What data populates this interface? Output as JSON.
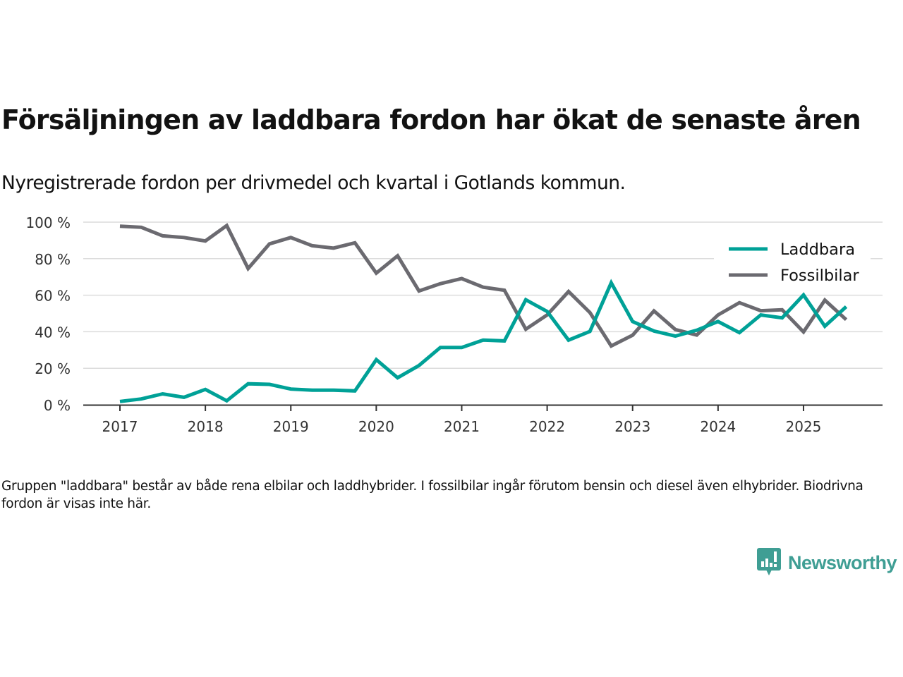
{
  "title": "Försäljningen av laddbara fordon har ökat de senaste åren",
  "subtitle": "Nyregistrerade fordon per drivmedel och kvartal i Gotlands kommun.",
  "footnote": "Gruppen \"laddbara\" består av både rena elbilar och laddhybrider. I fossilbilar ingår förutom bensin och diesel även elhybrider. Biodrivna fordon är visas inte här.",
  "logo": {
    "text": "Newsworthy",
    "icon": "bar-chart-speech-bubble-icon",
    "color": "#3f9e94"
  },
  "chart_data": {
    "type": "line",
    "title": "Försäljningen av laddbara fordon har ökat de senaste åren",
    "xlabel": "",
    "ylabel": "",
    "x": [
      "2017Q1",
      "2017Q2",
      "2017Q3",
      "2017Q4",
      "2018Q1",
      "2018Q2",
      "2018Q3",
      "2018Q4",
      "2019Q1",
      "2019Q2",
      "2019Q3",
      "2019Q4",
      "2020Q1",
      "2020Q2",
      "2020Q3",
      "2020Q4",
      "2021Q1",
      "2021Q2",
      "2021Q3",
      "2021Q4",
      "2022Q1",
      "2022Q2",
      "2022Q3",
      "2022Q4",
      "2023Q1",
      "2023Q2",
      "2023Q3",
      "2023Q4",
      "2024Q1",
      "2024Q2",
      "2024Q3",
      "2024Q4",
      "2025Q1",
      "2025Q2",
      "2025Q3"
    ],
    "x_ticks": [
      "2017",
      "2018",
      "2019",
      "2020",
      "2021",
      "2022",
      "2023",
      "2024",
      "2025"
    ],
    "y_ticks": [
      "0 %",
      "20 %",
      "40 %",
      "60 %",
      "80 %",
      "100 %"
    ],
    "y_tick_values": [
      0,
      20,
      40,
      60,
      80,
      100
    ],
    "ylim": [
      0,
      100
    ],
    "grid": true,
    "legend_position": "top-right",
    "series": [
      {
        "name": "Laddbara",
        "color": "#00a197",
        "values": [
          1.8,
          3.2,
          6.0,
          4.1,
          8.4,
          2.2,
          11.5,
          11.2,
          8.6,
          8.0,
          8.0,
          7.6,
          24.7,
          14.8,
          21.5,
          31.4,
          31.4,
          35.4,
          35.0,
          57.5,
          51.1,
          35.4,
          40.2,
          66.8,
          45.6,
          40.4,
          37.6,
          40.8,
          45.6,
          39.5,
          49.2,
          47.6,
          60.1,
          43.0,
          53.7
        ]
      },
      {
        "name": "Fossilbilar",
        "color": "#6b6a70",
        "values": [
          97.8,
          97.2,
          92.5,
          91.6,
          89.7,
          98.1,
          74.6,
          88.1,
          91.6,
          87.1,
          85.8,
          88.7,
          72.1,
          81.6,
          62.3,
          66.3,
          69.1,
          64.4,
          62.7,
          41.4,
          49.2,
          62.0,
          50.5,
          32.2,
          38.1,
          51.4,
          41.2,
          38.2,
          49.2,
          55.9,
          51.5,
          52.0,
          39.9,
          57.3,
          46.6
        ]
      }
    ]
  }
}
